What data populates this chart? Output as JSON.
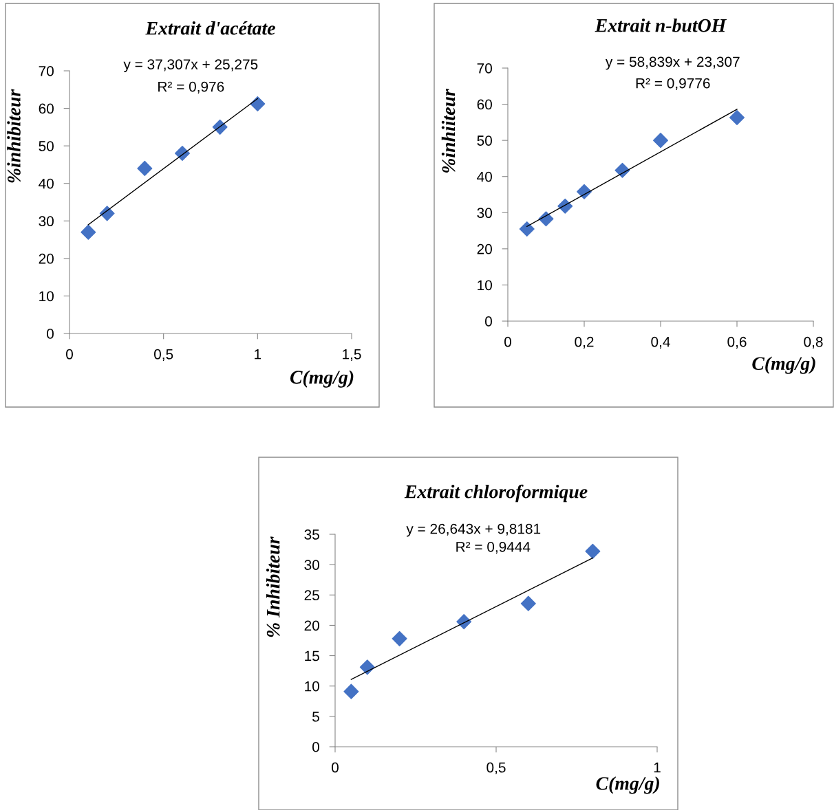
{
  "chart_data": [
    {
      "type": "scatter",
      "title": "Extrait d'acétate",
      "xlabel": "C(mg/g)",
      "ylabel": "%inhibiteur",
      "marker": "diamond",
      "grid": false,
      "legend": false,
      "xlim": [
        0,
        1.5
      ],
      "xticks": [
        0,
        {
          "value": 0.5,
          "label": "0,5"
        },
        1,
        {
          "value": 1.5,
          "label": "1,5"
        }
      ],
      "ylim": [
        0,
        70
      ],
      "yticks": [
        0,
        10,
        20,
        30,
        40,
        50,
        60,
        70
      ],
      "x": [
        0.1,
        0.2,
        0.4,
        0.6,
        0.8,
        1
      ],
      "series": [
        {
          "color": "#4472c4",
          "values": [
            27,
            32,
            44,
            48,
            55,
            61.2
          ]
        },
        {
          "type": "line",
          "color": "#000000",
          "marker": "none",
          "x": [
            0.1,
            1
          ],
          "values": [
            29.0,
            62.6
          ]
        }
      ],
      "annotations": [
        "y = 37,307x + 25,275",
        "R² = 0,976"
      ]
    },
    {
      "type": "scatter",
      "title": "Extrait n-butOH",
      "xlabel": "C(mg/g)",
      "ylabel": "%inhiiteur",
      "marker": "diamond",
      "grid": false,
      "legend": false,
      "xlim": [
        0,
        0.8
      ],
      "xticks": [
        0,
        {
          "value": 0.2,
          "label": "0,2"
        },
        {
          "value": 0.4,
          "label": "0,4"
        },
        {
          "value": 0.6,
          "label": "0,6"
        },
        {
          "value": 0.8,
          "label": "0,8"
        }
      ],
      "ylim": [
        0,
        70
      ],
      "yticks": [
        0,
        10,
        20,
        30,
        40,
        50,
        60,
        70
      ],
      "x": [
        0.05,
        0.1,
        0.15,
        0.2,
        0.3,
        0.4,
        0.6
      ],
      "series": [
        {
          "color": "#4472c4",
          "values": [
            25.5,
            28.3,
            31.8,
            35.8,
            41.7,
            50,
            56.3
          ]
        },
        {
          "type": "line",
          "color": "#000000",
          "marker": "none",
          "x": [
            0.05,
            0.6
          ],
          "values": [
            26.2,
            58.6
          ]
        }
      ],
      "annotations": [
        "y = 58,839x + 23,307",
        "R² = 0,9776"
      ]
    },
    {
      "type": "scatter",
      "title": "Extrait chloroformique",
      "xlabel": "C(mg/g)",
      "ylabel": "% Inhibiteur",
      "marker": "diamond",
      "grid": false,
      "legend": false,
      "xlim": [
        0,
        1
      ],
      "xticks": [
        0,
        {
          "value": 0.5,
          "label": "0,5"
        },
        1
      ],
      "ylim": [
        0,
        35
      ],
      "yticks": [
        0,
        5,
        10,
        15,
        20,
        25,
        30,
        35
      ],
      "x": [
        0.05,
        0.1,
        0.2,
        0.4,
        0.6,
        0.8
      ],
      "series": [
        {
          "color": "#4472c4",
          "values": [
            9.1,
            13.1,
            17.8,
            20.6,
            23.6,
            32.2
          ]
        },
        {
          "type": "line",
          "color": "#000000",
          "marker": "none",
          "x": [
            0.05,
            0.8
          ],
          "values": [
            11.1,
            31.1
          ]
        }
      ],
      "annotations": [
        "y = 26,643x + 9,8181",
        "R² = 0,9444"
      ]
    }
  ]
}
